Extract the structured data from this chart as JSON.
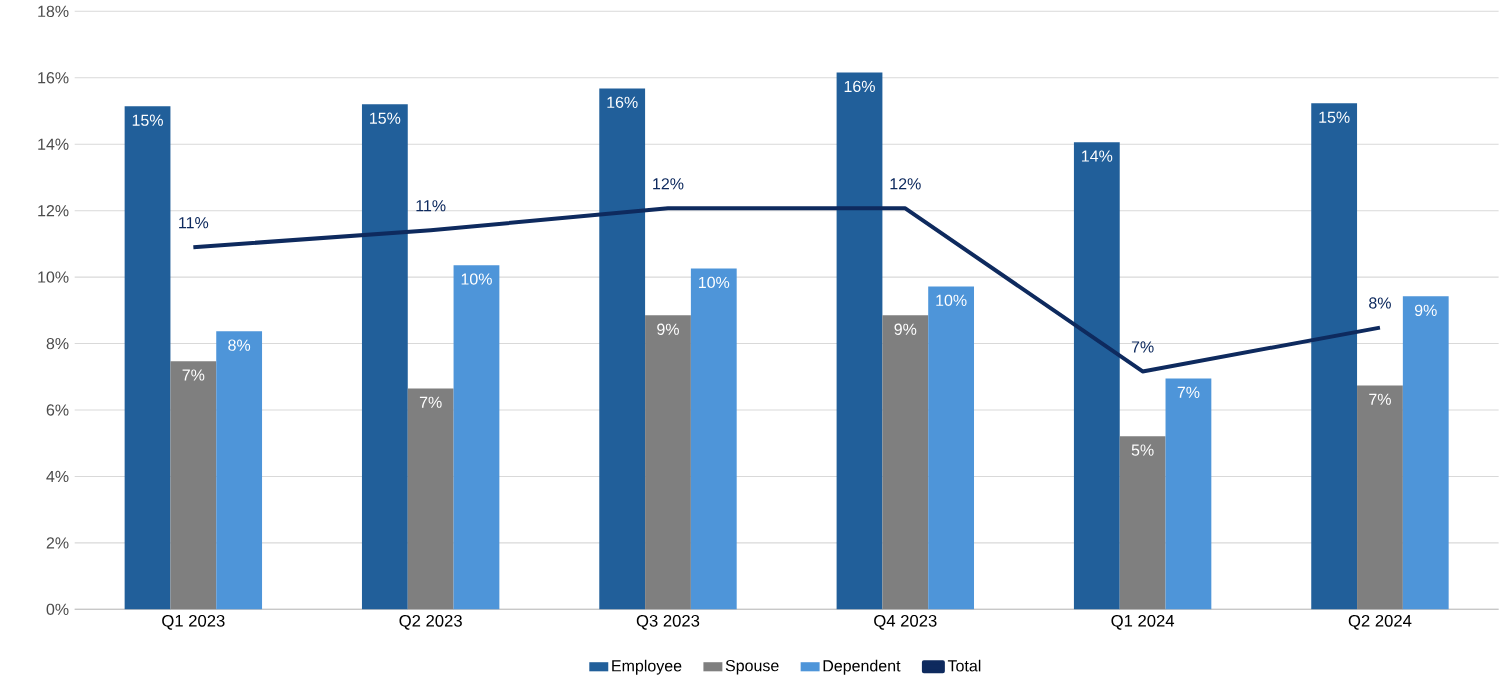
{
  "chart_data": {
    "type": "bar",
    "categories": [
      "Q1 2023",
      "Q2 2023",
      "Q3 2023",
      "Q4 2023",
      "Q1 2024",
      "Q2 2024"
    ],
    "series": [
      {
        "name": "Employee",
        "color": "#215f9a",
        "values": [
          15.14,
          15.2,
          15.68,
          16.16,
          14.06,
          15.23
        ],
        "value_labels": [
          "15%",
          "15%",
          "16%",
          "16%",
          "14%",
          "15%"
        ]
      },
      {
        "name": "Spouse",
        "color": "#7f7f7f",
        "values": [
          7.47,
          6.65,
          8.85,
          8.85,
          5.21,
          6.74
        ],
        "value_labels": [
          "7%",
          "7%",
          "9%",
          "9%",
          "5%",
          "7%"
        ]
      },
      {
        "name": "Dependent",
        "color": "#4e95d9",
        "values": [
          8.37,
          10.36,
          10.26,
          9.72,
          6.95,
          9.42
        ],
        "value_labels": [
          "8%",
          "10%",
          "10%",
          "10%",
          "7%",
          "9%"
        ]
      },
      {
        "name": "Total",
        "type": "line",
        "color": "#0e2a5e",
        "values": [
          10.9,
          11.41,
          12.07,
          12.07,
          7.16,
          8.48
        ],
        "value_labels": [
          "11%",
          "11%",
          "12%",
          "12%",
          "7%",
          "8%"
        ]
      }
    ],
    "ylim": [
      0,
      18
    ],
    "yticks": [
      {
        "value": 0,
        "label": "0%"
      },
      {
        "value": 2,
        "label": "2%"
      },
      {
        "value": 4,
        "label": "4%"
      },
      {
        "value": 6,
        "label": "6%"
      },
      {
        "value": 8,
        "label": "8%"
      },
      {
        "value": 10,
        "label": "10%"
      },
      {
        "value": 12,
        "label": "12%"
      },
      {
        "value": 14,
        "label": "14%"
      },
      {
        "value": 16,
        "label": "16%"
      },
      {
        "value": 18,
        "label": "18%"
      }
    ],
    "grid": "y",
    "legend": "bottom"
  }
}
